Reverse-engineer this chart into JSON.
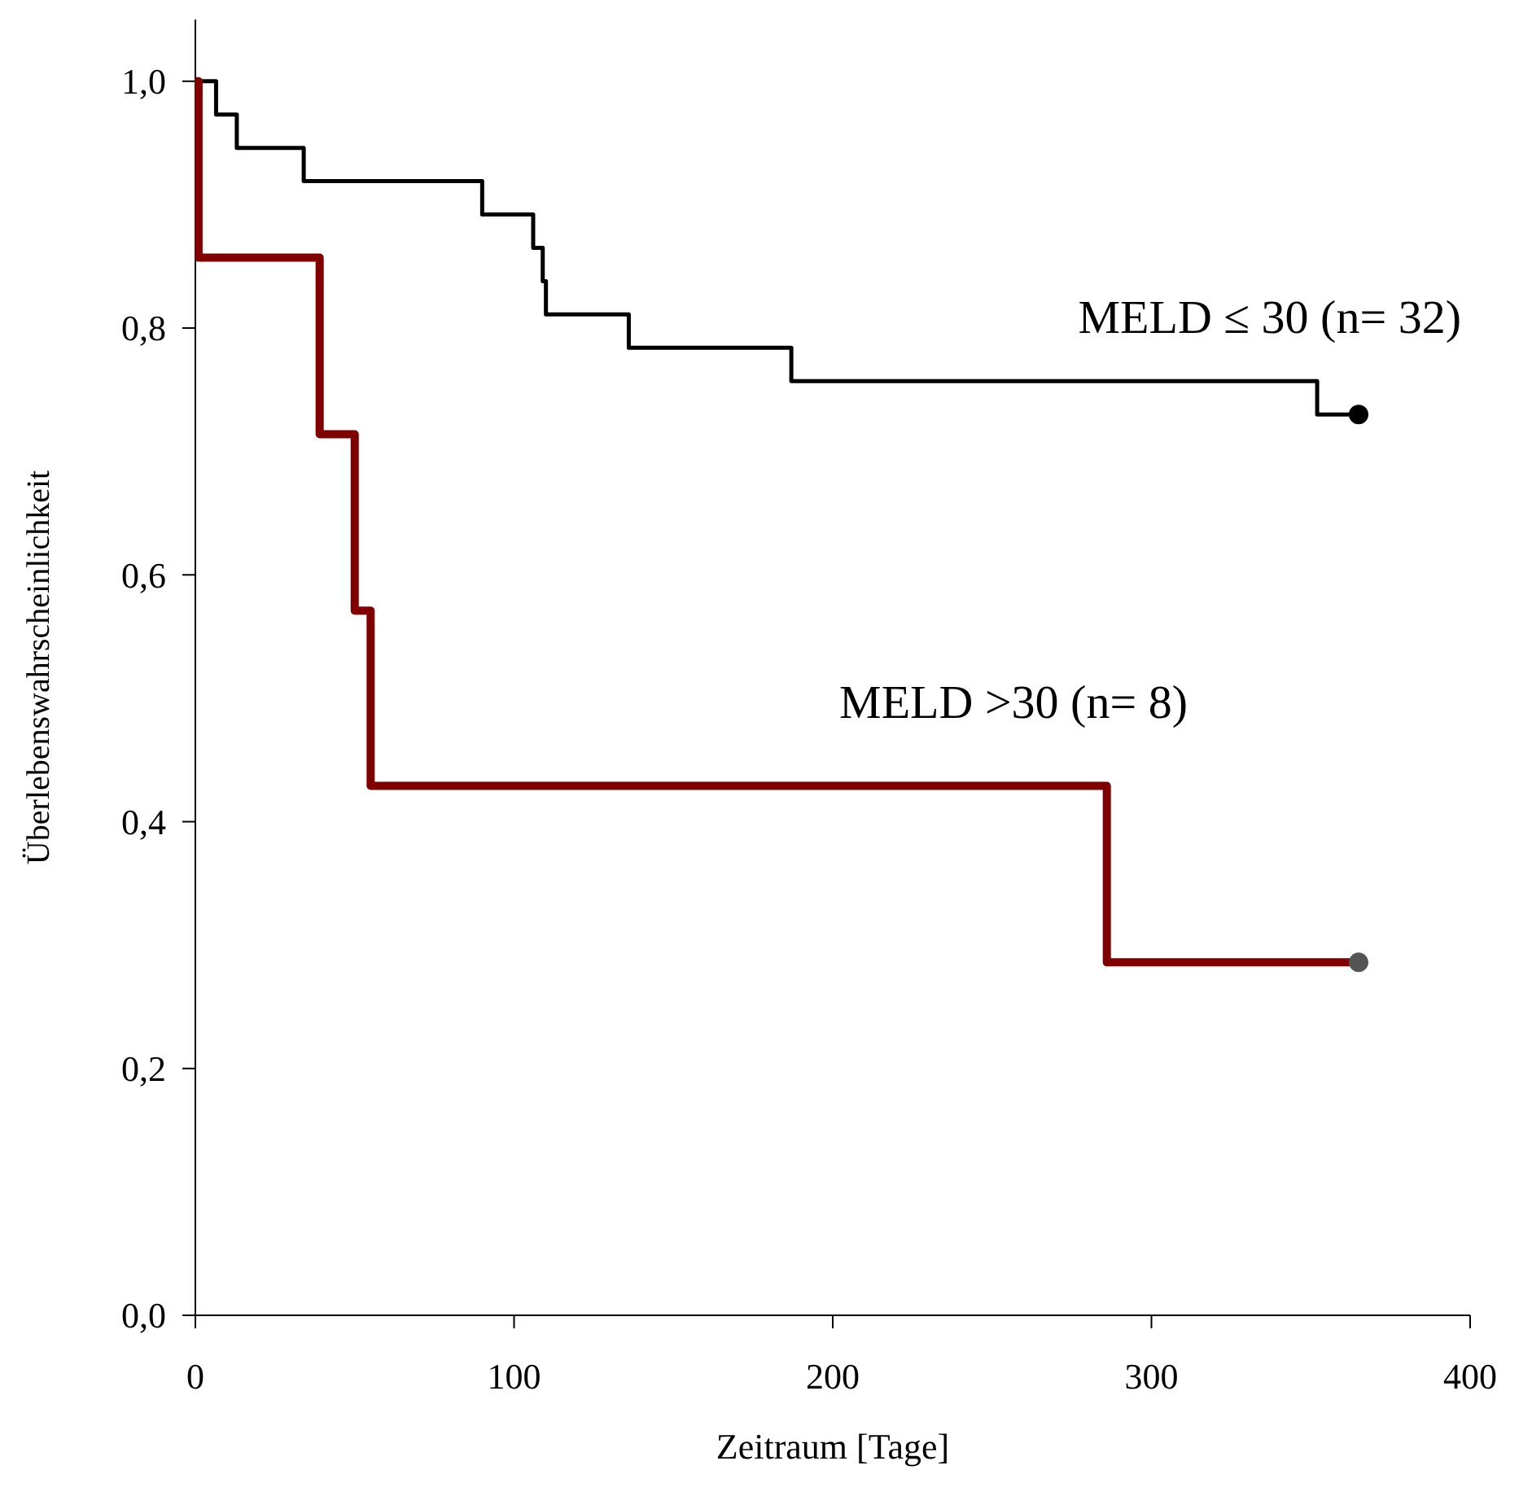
{
  "chart_data": {
    "type": "step",
    "xlabel": "Zeitraum [Tage]",
    "ylabel": "Überlebenswahrscheinlichkeit",
    "xlim": [
      0,
      400
    ],
    "xticks": [
      0,
      100,
      200,
      300,
      400
    ],
    "ylim": [
      0,
      1.05
    ],
    "yticks": [
      {
        "value": 0,
        "label": "0,0"
      },
      {
        "value": 0.2,
        "label": "0,2"
      },
      {
        "value": 0.4,
        "label": "0,4"
      },
      {
        "value": 0.6,
        "label": "0,6"
      },
      {
        "value": 0.8,
        "label": "0,8"
      },
      {
        "value": 1,
        "label": "1,0"
      }
    ],
    "grid": false,
    "legend": false,
    "series": [
      {
        "name": "MELD ≤ 30 (n= 32)",
        "color": "#000000",
        "marker": "none",
        "x": [
          0,
          6.5,
          13,
          34,
          90,
          106,
          109,
          110,
          136,
          187,
          352,
          365
        ],
        "values": [
          1,
          0.973,
          0.946,
          0.919,
          0.892,
          0.865,
          0.838,
          0.811,
          0.784,
          0.757,
          0.73,
          0.73
        ]
      },
      {
        "name": "MELD >30 (n= 8)",
        "color": "#800000",
        "marker": "none",
        "x": [
          0,
          1,
          39,
          50,
          55,
          286,
          365
        ],
        "values": [
          1,
          0.857,
          0.714,
          0.571,
          0.429,
          0.286,
          0.286
        ]
      },
      {
        "type": "scatter",
        "color": "#000000",
        "marker": "circle",
        "x": [
          365
        ],
        "values": [
          0.73
        ]
      },
      {
        "type": "scatter",
        "color": "#555555",
        "marker": "circle",
        "x": [
          365
        ],
        "values": [
          0.286
        ]
      }
    ]
  }
}
